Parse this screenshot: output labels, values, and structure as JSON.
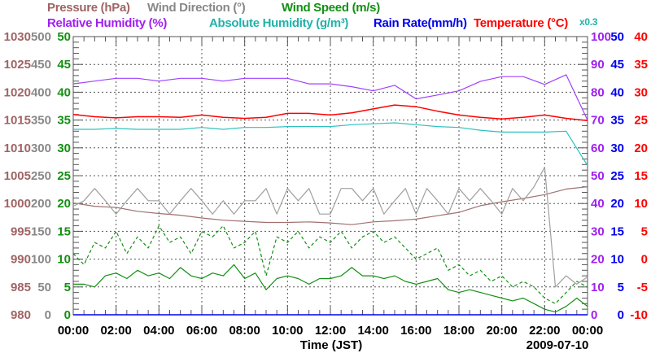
{
  "chart_data": {
    "type": "line",
    "legend_row1": [
      "Pressure (hPa)",
      "Wind Direction (°)",
      "Wind Speed (m/s)"
    ],
    "legend_row2": [
      "Relative Humidity (%)",
      "Absolute Humidity (g/m³)",
      "Rain Rate(mm/h)",
      "Temperature (°C)"
    ],
    "abs_humidity_scale_note": "x0.3",
    "xlabel": "Time (JST)",
    "date": "2009-07-10",
    "x_ticks": [
      "00:00",
      "02:00",
      "04:00",
      "06:00",
      "08:00",
      "10:00",
      "12:00",
      "14:00",
      "16:00",
      "18:00",
      "20:00",
      "22:00",
      "00:00"
    ],
    "xlim_hours": [
      0,
      24
    ],
    "grid": true,
    "axes": {
      "pressure": {
        "ticks": [
          "1030",
          "1025",
          "1020",
          "1015",
          "1010",
          "1005",
          "1000",
          "995",
          "990",
          "985",
          "980"
        ],
        "range": [
          980,
          1030
        ],
        "color": "#a06464"
      },
      "wind_direction": {
        "ticks": [
          "500",
          "450",
          "400",
          "350",
          "300",
          "250",
          "200",
          "150",
          "100",
          "50",
          "0"
        ],
        "range": [
          0,
          500
        ],
        "color": "#888888"
      },
      "wind_speed": {
        "ticks": [
          "50",
          "45",
          "40",
          "35",
          "30",
          "25",
          "20",
          "15",
          "10",
          "5",
          "0"
        ],
        "range": [
          0,
          50
        ],
        "color": "#129012"
      },
      "relative_humidity": {
        "ticks": [
          "100",
          "90",
          "80",
          "70",
          "60",
          "50",
          "40",
          "30",
          "20",
          "10",
          "0"
        ],
        "range": [
          0,
          100
        ],
        "color": "#a020f0"
      },
      "rain_rate": {
        "ticks": [
          "50",
          "45",
          "40",
          "35",
          "30",
          "25",
          "20",
          "15",
          "10",
          "5",
          "0"
        ],
        "range": [
          0,
          50
        ],
        "color": "#0000ee"
      },
      "temperature": {
        "ticks": [
          "40",
          "35",
          "30",
          "25",
          "20",
          "15",
          "10",
          "5",
          "0",
          "-5",
          "-10"
        ],
        "range": [
          -10,
          40
        ],
        "color": "#ff0000"
      }
    },
    "colors": {
      "abs_humidity": "#30c0c0",
      "legend_abs": "#20b2aa"
    },
    "x_hours_hourly": [
      0,
      1,
      2,
      3,
      4,
      5,
      6,
      7,
      8,
      9,
      10,
      11,
      12,
      13,
      14,
      15,
      16,
      17,
      18,
      19,
      20,
      21,
      22,
      23,
      24
    ],
    "relative_humidity": [
      83,
      84,
      85,
      85,
      84,
      85,
      85,
      84,
      85,
      85,
      85,
      83,
      83,
      82,
      80.5,
      82.5,
      77.6,
      79,
      80.5,
      83.9,
      85.6,
      85.6,
      82.8,
      86.3,
      70
    ],
    "temperature": [
      26.0,
      25.6,
      25.4,
      25.6,
      25.6,
      25.5,
      25.9,
      25.5,
      25.3,
      25.5,
      26.2,
      26.2,
      25.9,
      26.3,
      27.0,
      27.7,
      27.4,
      26.6,
      25.9,
      25.5,
      25.2,
      25.5,
      25.9,
      25.3,
      24.9
    ],
    "abs_humidity": [
      20.0,
      20.0,
      20.1,
      20.0,
      20.0,
      20.0,
      20.2,
      20.0,
      20.2,
      20.2,
      20.3,
      20.3,
      20.3,
      20.5,
      20.6,
      20.7,
      20.5,
      20.3,
      20.2,
      19.9,
      19.7,
      19.7,
      19.7,
      19.8,
      16.1
    ],
    "pressure": [
      1000.1,
      999.5,
      999.3,
      998.6,
      998.2,
      997.9,
      997.4,
      997.0,
      996.8,
      996.6,
      996.6,
      996.7,
      996.5,
      996.2,
      996.7,
      996.9,
      997.2,
      997.8,
      998.4,
      999.6,
      1000.3,
      1000.9,
      1001.6,
      1002.6,
      1003.0
    ],
    "rain_rate": [
      0,
      0,
      0,
      0,
      0,
      0,
      0,
      0,
      0,
      0,
      0,
      0,
      0,
      0,
      0,
      0,
      0,
      0,
      0,
      0,
      0,
      0,
      0,
      0,
      0
    ],
    "x_hours_halfhourly_step": 0.5,
    "wind_direction": [
      195,
      205,
      227,
      205,
      181,
      205,
      227,
      205,
      205,
      181,
      205,
      227,
      205,
      181,
      205,
      181,
      205,
      205,
      227,
      181,
      227,
      205,
      227,
      181,
      181,
      227,
      227,
      205,
      227,
      181,
      205,
      227,
      181,
      227,
      205,
      181,
      227,
      205,
      227,
      205,
      181,
      227,
      205,
      230,
      265,
      50,
      70,
      55,
      68
    ],
    "wind_speed": [
      5.5,
      5.5,
      5,
      7,
      7.5,
      6.5,
      8,
      7,
      7.5,
      6.5,
      8.5,
      7,
      6.5,
      7.5,
      7,
      9,
      6.5,
      7.5,
      4.5,
      6.5,
      7,
      6.5,
      5.5,
      6.5,
      6.5,
      7,
      8.5,
      7,
      7,
      6.5,
      7,
      6,
      5.5,
      6,
      6.5,
      4.5,
      4,
      4.5,
      4,
      3.5,
      3,
      2.5,
      3,
      2,
      1,
      0.5,
      1.5,
      3,
      1.5
    ],
    "wind_speed_max": [
      11,
      9,
      13,
      12,
      15,
      11,
      14,
      12,
      16,
      13,
      14,
      11,
      15,
      14,
      16,
      12,
      13,
      15,
      7,
      14,
      13,
      15,
      12,
      14,
      13,
      15,
      12,
      14,
      15,
      13,
      14,
      12,
      10,
      11,
      12,
      8,
      9,
      7,
      8,
      6,
      7,
      5,
      6,
      5,
      3,
      2,
      4,
      6,
      5
    ]
  }
}
